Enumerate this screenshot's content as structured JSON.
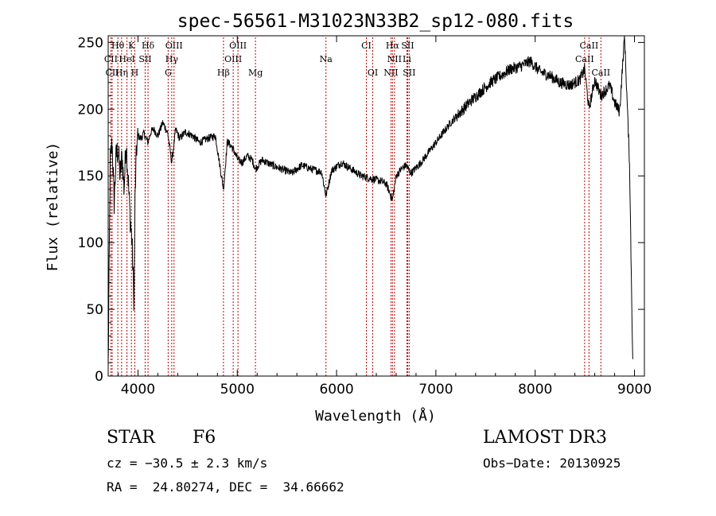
{
  "chart_data": {
    "type": "line",
    "title": "spec-56561-M31023N33B2_sp12-080.fits",
    "xlabel": "Wavelength (Å)",
    "ylabel": "Flux (relative)",
    "xlim": [
      3700,
      9100
    ],
    "ylim": [
      0,
      255
    ],
    "xticks": [
      4000,
      5000,
      6000,
      7000,
      8000,
      9000
    ],
    "yticks": [
      0,
      50,
      100,
      150,
      200,
      250
    ],
    "grid": false,
    "line_color": "#000000",
    "marker_color": "#c00000",
    "spectrum": {
      "x": [
        3700,
        3720,
        3740,
        3760,
        3780,
        3800,
        3820,
        3840,
        3860,
        3880,
        3900,
        3920,
        3940,
        3960,
        3970,
        3985,
        4000,
        4030,
        4060,
        4101,
        4130,
        4160,
        4200,
        4250,
        4300,
        4340,
        4380,
        4420,
        4480,
        4550,
        4620,
        4700,
        4780,
        4861,
        4900,
        4960,
        5007,
        5050,
        5100,
        5150,
        5183,
        5250,
        5350,
        5450,
        5550,
        5650,
        5750,
        5850,
        5893,
        5950,
        6050,
        6150,
        6250,
        6350,
        6450,
        6500,
        6563,
        6600,
        6650,
        6700,
        6750,
        6850,
        6950,
        7050,
        7150,
        7250,
        7350,
        7450,
        7550,
        7650,
        7750,
        7850,
        7950,
        8050,
        8150,
        8250,
        8350,
        8450,
        8498,
        8542,
        8600,
        8662,
        8750,
        8800,
        8850,
        8900,
        8950,
        8985
      ],
      "y": [
        5,
        160,
        175,
        130,
        165,
        170,
        150,
        165,
        140,
        175,
        150,
        120,
        100,
        55,
        130,
        170,
        180,
        178,
        182,
        175,
        183,
        185,
        180,
        190,
        182,
        160,
        185,
        178,
        183,
        180,
        175,
        178,
        180,
        140,
        176,
        170,
        162,
        160,
        165,
        162,
        155,
        162,
        158,
        155,
        152,
        158,
        155,
        153,
        135,
        154,
        160,
        155,
        150,
        148,
        146,
        144,
        132,
        150,
        155,
        158,
        152,
        160,
        170,
        180,
        190,
        198,
        206,
        213,
        220,
        225,
        230,
        232,
        236,
        228,
        225,
        220,
        218,
        222,
        230,
        200,
        222,
        210,
        218,
        205,
        198,
        255,
        160,
        0
      ]
    },
    "lines": [
      {
        "label": "Hθ",
        "x": 3797,
        "row": 1
      },
      {
        "label": "K",
        "x": 3934,
        "row": 1
      },
      {
        "label": "Hδ",
        "x": 4101,
        "row": 1
      },
      {
        "label": "OIII",
        "x": 4363,
        "row": 1
      },
      {
        "label": "OIII",
        "x": 5007,
        "row": 1
      },
      {
        "label": "CI",
        "x": 6300,
        "row": 1
      },
      {
        "label": "Hα",
        "x": 6563,
        "row": 1
      },
      {
        "label": "SII",
        "x": 6716,
        "row": 1
      },
      {
        "label": "CaII",
        "x": 8542,
        "row": 1
      },
      {
        "label": "CII",
        "x": 3727,
        "row": 2
      },
      {
        "label": "HeI",
        "x": 3889,
        "row": 2
      },
      {
        "label": "SII",
        "x": 4072,
        "row": 2
      },
      {
        "label": "Hγ",
        "x": 4340,
        "row": 2
      },
      {
        "label": "OIII",
        "x": 4959,
        "row": 2
      },
      {
        "label": "Na",
        "x": 5893,
        "row": 2
      },
      {
        "label": "NII",
        "x": 6583,
        "row": 2
      },
      {
        "label": "Li",
        "x": 6708,
        "row": 2
      },
      {
        "label": "CaII",
        "x": 8498,
        "row": 2
      },
      {
        "label": "CII",
        "x": 3740,
        "row": 3
      },
      {
        "label": "Hη",
        "x": 3835,
        "row": 3
      },
      {
        "label": "H",
        "x": 3968,
        "row": 3
      },
      {
        "label": "G",
        "x": 4304,
        "row": 3
      },
      {
        "label": "Hβ",
        "x": 4861,
        "row": 3
      },
      {
        "label": "Mg",
        "x": 5183,
        "row": 3
      },
      {
        "label": "OI",
        "x": 6364,
        "row": 3
      },
      {
        "label": "NII",
        "x": 6548,
        "row": 3
      },
      {
        "label": "SII",
        "x": 6731,
        "row": 3
      },
      {
        "label": "CaII",
        "x": 8662,
        "row": 3
      }
    ]
  },
  "info": {
    "class_label": "STAR",
    "subclass": "F6",
    "survey": "LAMOST DR3",
    "cz": "cz = −30.5 ± 2.3 km/s",
    "obs_date": "Obs−Date: 20130925",
    "coords": "RA =  24.80274, DEC =  34.66662"
  }
}
